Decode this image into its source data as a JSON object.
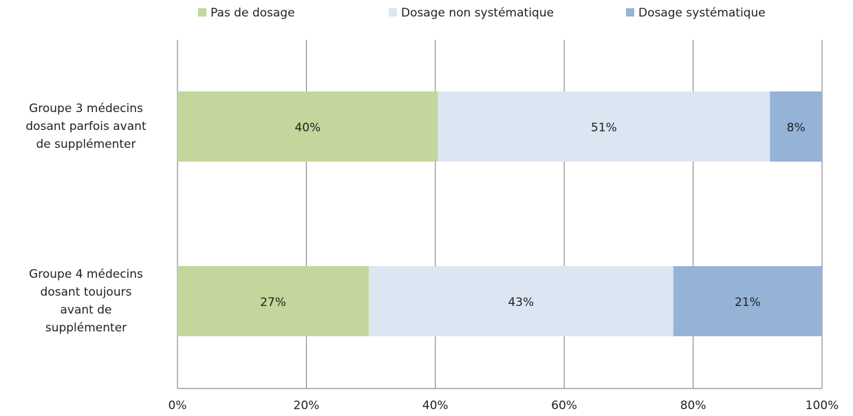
{
  "chart_data": {
    "type": "bar",
    "orientation": "horizontal",
    "stacking": "percent",
    "categories": [
      "Groupe 3 médecins\ndosant parfois avant\nde supplémenter",
      "Groupe 4 médecins\ndosant toujours\navant de\nsupplémenter"
    ],
    "series": [
      {
        "name": "Pas de dosage",
        "color": "#c3d69b",
        "values": [
          40,
          27
        ],
        "value_labels": [
          "40%",
          "27%"
        ]
      },
      {
        "name": "Dosage non systématique",
        "color": "#dce6f2",
        "values": [
          51,
          43
        ],
        "value_labels": [
          "51%",
          "43%"
        ]
      },
      {
        "name": "Dosage systématique",
        "color": "#95b3d7",
        "values": [
          8,
          21
        ],
        "value_labels": [
          "8%",
          "21%"
        ]
      }
    ],
    "xlim": [
      0,
      100
    ],
    "xticks": [
      {
        "value": 0,
        "label": "0%"
      },
      {
        "value": 20,
        "label": "20%"
      },
      {
        "value": 40,
        "label": "40%"
      },
      {
        "value": 60,
        "label": "60%"
      },
      {
        "value": 80,
        "label": "80%"
      },
      {
        "value": 100,
        "label": "100%"
      }
    ],
    "grid": true,
    "legend": "top"
  }
}
